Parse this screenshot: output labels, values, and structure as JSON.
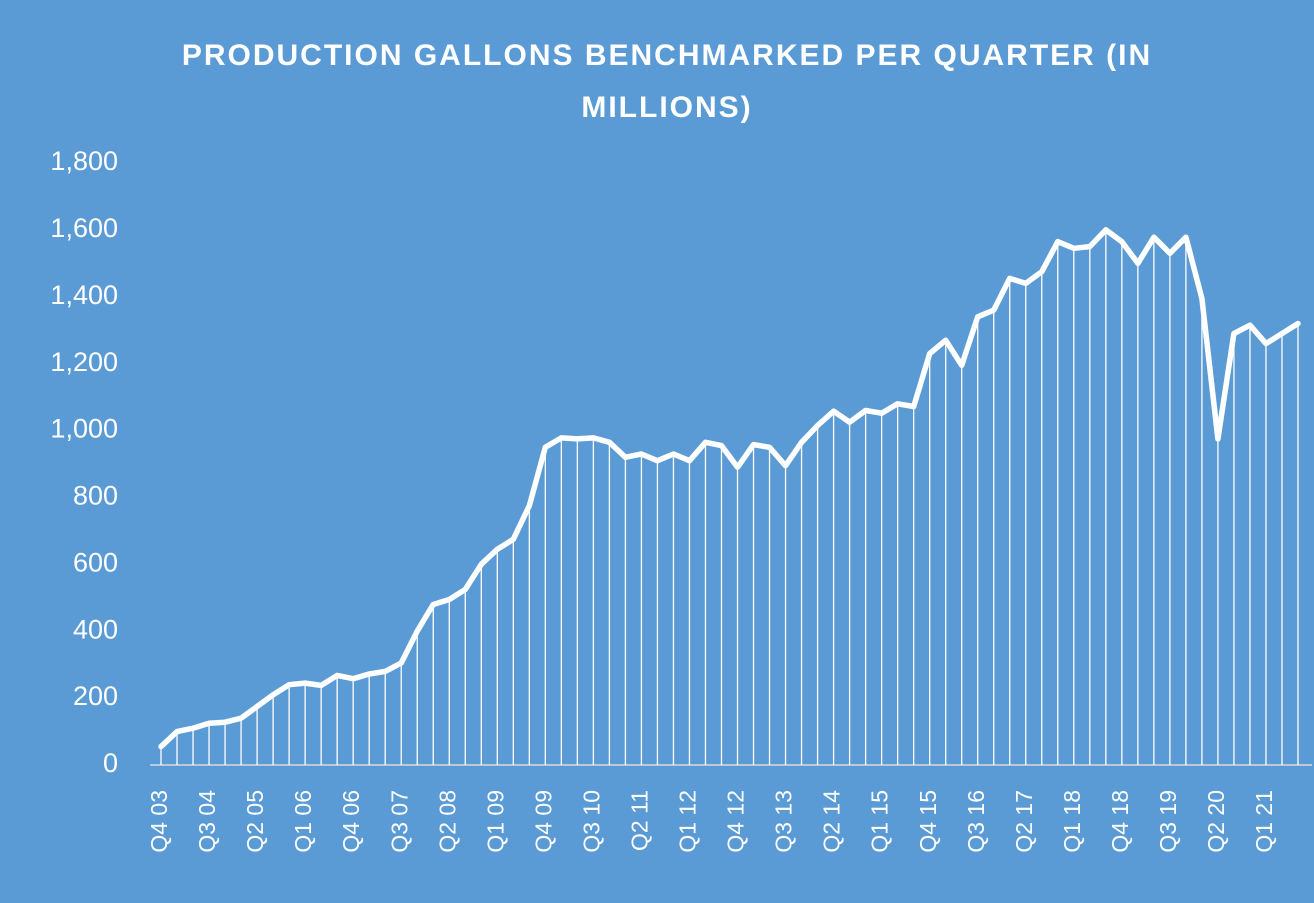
{
  "chart_data": {
    "type": "line",
    "title": "PRODUCTION GALLONS BENCHMARKED PER QUARTER (IN MILLIONS)",
    "categories": [
      "Q4 03",
      null,
      null,
      "Q3 04",
      null,
      null,
      "Q2 05",
      null,
      null,
      "Q1 06",
      null,
      null,
      "Q4 06",
      null,
      null,
      "Q3 07",
      null,
      null,
      "Q2 08",
      null,
      null,
      "Q1 09",
      null,
      null,
      "Q4 09",
      null,
      null,
      "Q3 10",
      null,
      null,
      "Q2 11",
      null,
      null,
      "Q1 12",
      null,
      null,
      "Q4 12",
      null,
      null,
      "Q3 13",
      null,
      null,
      "Q2 14",
      null,
      null,
      "Q1 15",
      null,
      null,
      "Q4 15",
      null,
      null,
      "Q3 16",
      null,
      null,
      "Q2 17",
      null,
      null,
      "Q1 18",
      null,
      null,
      "Q4 18",
      null,
      null,
      "Q3 19",
      null,
      null,
      "Q2 20",
      null,
      null,
      "Q1 21",
      null,
      null
    ],
    "values": [
      55,
      100,
      110,
      125,
      128,
      140,
      175,
      210,
      240,
      245,
      238,
      268,
      258,
      272,
      280,
      305,
      400,
      480,
      495,
      525,
      600,
      645,
      675,
      775,
      950,
      978,
      975,
      978,
      965,
      920,
      930,
      910,
      930,
      910,
      965,
      955,
      890,
      958,
      950,
      895,
      965,
      1015,
      1058,
      1025,
      1060,
      1052,
      1080,
      1072,
      1230,
      1270,
      1195,
      1340,
      1360,
      1455,
      1440,
      1475,
      1565,
      1545,
      1550,
      1600,
      1565,
      1500,
      1578,
      1530,
      1578,
      1395,
      975,
      1290,
      1315,
      1260,
      1290,
      1320
    ],
    "color": "#ffffff",
    "ylim": [
      0,
      1800
    ],
    "yticks": [
      0,
      200,
      400,
      600,
      800,
      {
        "value": 1000,
        "label": "1,000"
      },
      {
        "value": 1200,
        "label": "1,200"
      },
      {
        "value": 1400,
        "label": "1,400"
      },
      {
        "value": 1600,
        "label": "1,600"
      },
      {
        "value": 1800,
        "label": "1,800"
      }
    ],
    "drop_lines": true
  }
}
